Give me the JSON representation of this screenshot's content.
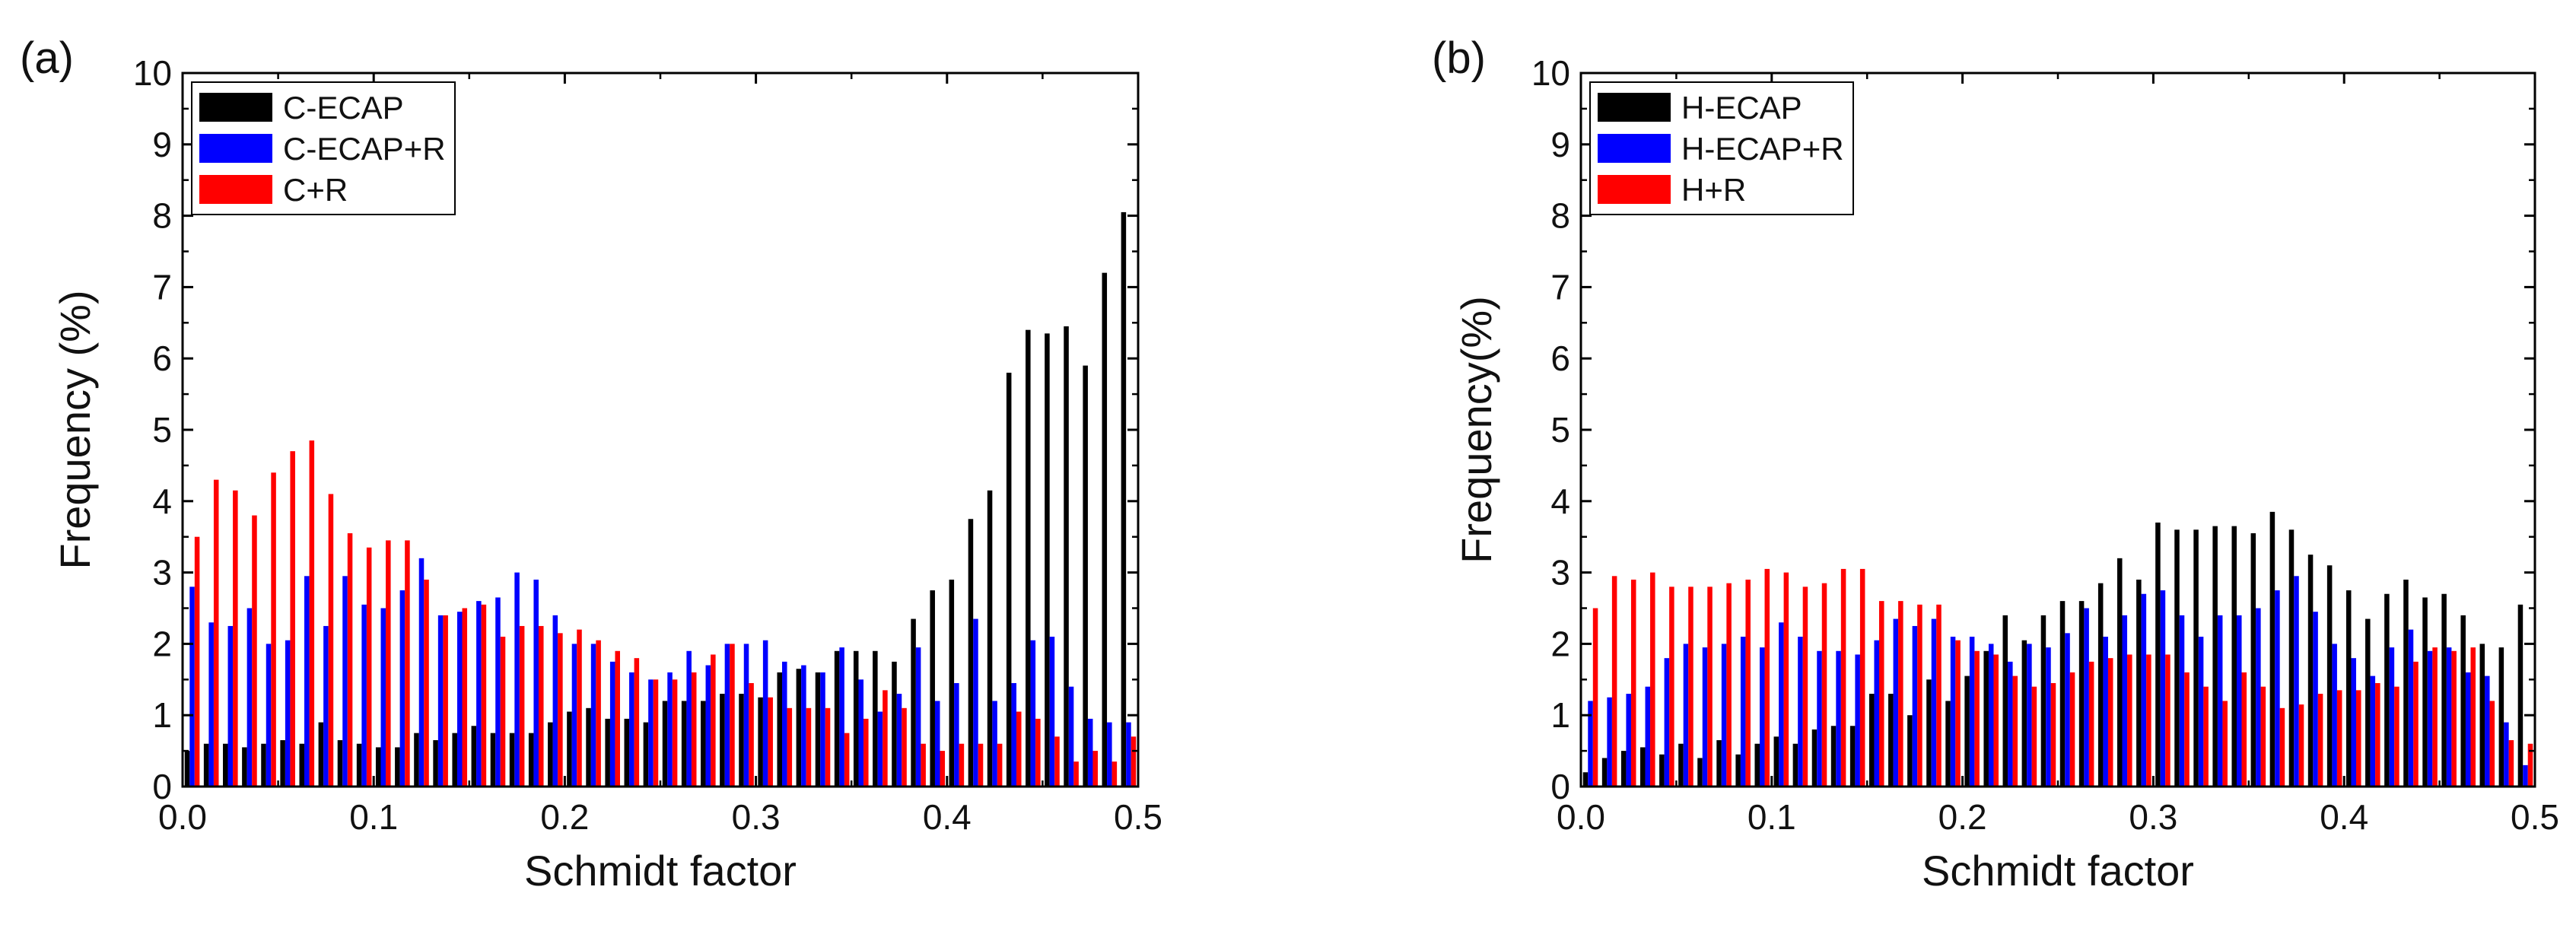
{
  "chart_data": [
    {
      "type": "bar",
      "panel_label": "(a)",
      "xlabel": "Schmidt factor",
      "ylabel": "Frequency (%)",
      "xlim": [
        0,
        0.5
      ],
      "ylim": [
        0,
        10
      ],
      "x_ticks": [
        "0.0",
        "0.1",
        "0.2",
        "0.3",
        "0.4",
        "0.5"
      ],
      "y_ticks": [
        "0",
        "1",
        "2",
        "3",
        "4",
        "5",
        "6",
        "7",
        "8",
        "9",
        "10"
      ],
      "bin_width": 0.01,
      "x": [
        0.005,
        0.015,
        0.025,
        0.035,
        0.045,
        0.055,
        0.065,
        0.075,
        0.085,
        0.095,
        0.105,
        0.115,
        0.125,
        0.135,
        0.145,
        0.155,
        0.165,
        0.175,
        0.185,
        0.195,
        0.205,
        0.215,
        0.225,
        0.235,
        0.245,
        0.255,
        0.265,
        0.275,
        0.285,
        0.295,
        0.305,
        0.315,
        0.325,
        0.335,
        0.345,
        0.355,
        0.365,
        0.375,
        0.385,
        0.395,
        0.405,
        0.415,
        0.425,
        0.435,
        0.445,
        0.455,
        0.465,
        0.475,
        0.485,
        0.495
      ],
      "legend": {
        "position": "top-left"
      },
      "series": [
        {
          "name": "C-ECAP",
          "color": "#000000",
          "values": [
            0.5,
            0.6,
            0.6,
            0.55,
            0.6,
            0.65,
            0.6,
            0.9,
            0.65,
            0.6,
            0.55,
            0.55,
            0.75,
            0.65,
            0.75,
            0.85,
            0.75,
            0.75,
            0.75,
            0.9,
            1.05,
            1.1,
            0.95,
            0.95,
            0.9,
            1.2,
            1.2,
            1.2,
            1.3,
            1.3,
            1.25,
            1.6,
            1.65,
            1.6,
            1.9,
            1.9,
            1.9,
            1.75,
            2.35,
            2.75,
            2.9,
            3.75,
            4.15,
            5.8,
            6.4,
            6.35,
            6.45,
            5.9,
            7.2,
            8.05
          ]
        },
        {
          "name": "C-ECAP+R",
          "color": "#0000ff",
          "values": [
            2.8,
            2.3,
            2.25,
            2.5,
            2.0,
            2.05,
            2.95,
            2.25,
            2.95,
            2.55,
            2.5,
            2.75,
            3.2,
            2.4,
            2.45,
            2.6,
            2.65,
            3.0,
            2.9,
            2.4,
            2.0,
            2.0,
            1.75,
            1.6,
            1.5,
            1.6,
            1.9,
            1.7,
            2.0,
            2.0,
            2.05,
            1.75,
            1.7,
            1.6,
            1.95,
            1.5,
            1.05,
            1.3,
            1.95,
            1.2,
            1.45,
            2.35,
            1.2,
            1.45,
            2.05,
            2.1,
            1.4,
            0.95,
            0.9,
            0.9
          ]
        },
        {
          "name": "C+R",
          "color": "#ff0000",
          "values": [
            3.5,
            4.3,
            4.15,
            3.8,
            4.4,
            4.7,
            4.85,
            4.1,
            3.55,
            3.35,
            3.45,
            3.45,
            2.9,
            2.4,
            2.5,
            2.55,
            2.1,
            2.25,
            2.25,
            2.15,
            2.2,
            2.05,
            1.9,
            1.8,
            1.5,
            1.5,
            1.6,
            1.85,
            2.0,
            1.45,
            1.25,
            1.1,
            1.1,
            1.1,
            0.75,
            0.95,
            1.35,
            1.1,
            0.6,
            0.5,
            0.6,
            0.6,
            0.6,
            1.05,
            0.95,
            0.7,
            0.35,
            0.5,
            0.35,
            0.7
          ]
        }
      ]
    },
    {
      "type": "bar",
      "panel_label": "(b)",
      "xlabel": "Schmidt factor",
      "ylabel": "Frequency(%)",
      "xlim": [
        0,
        0.5
      ],
      "ylim": [
        0,
        10
      ],
      "x_ticks": [
        "0.0",
        "0.1",
        "0.2",
        "0.3",
        "0.4",
        "0.5"
      ],
      "y_ticks": [
        "0",
        "1",
        "2",
        "3",
        "4",
        "5",
        "6",
        "7",
        "8",
        "9",
        "10"
      ],
      "bin_width": 0.01,
      "x": [
        0.005,
        0.015,
        0.025,
        0.035,
        0.045,
        0.055,
        0.065,
        0.075,
        0.085,
        0.095,
        0.105,
        0.115,
        0.125,
        0.135,
        0.145,
        0.155,
        0.165,
        0.175,
        0.185,
        0.195,
        0.205,
        0.215,
        0.225,
        0.235,
        0.245,
        0.255,
        0.265,
        0.275,
        0.285,
        0.295,
        0.305,
        0.315,
        0.325,
        0.335,
        0.345,
        0.355,
        0.365,
        0.375,
        0.385,
        0.395,
        0.405,
        0.415,
        0.425,
        0.435,
        0.445,
        0.455,
        0.465,
        0.475,
        0.485,
        0.495
      ],
      "legend": {
        "position": "top-left"
      },
      "series": [
        {
          "name": "H-ECAP",
          "color": "#000000",
          "values": [
            0.2,
            0.4,
            0.5,
            0.55,
            0.45,
            0.6,
            0.4,
            0.65,
            0.45,
            0.6,
            0.7,
            0.6,
            0.8,
            0.85,
            0.85,
            1.3,
            1.3,
            1.0,
            1.5,
            1.2,
            1.55,
            1.9,
            2.4,
            2.05,
            2.4,
            2.6,
            2.6,
            2.85,
            3.2,
            2.9,
            3.7,
            3.6,
            3.6,
            3.65,
            3.65,
            3.55,
            3.85,
            3.6,
            3.25,
            3.1,
            2.75,
            2.35,
            2.7,
            2.9,
            2.65,
            2.7,
            2.4,
            2.0,
            1.95,
            2.55
          ]
        },
        {
          "name": "H-ECAP+R",
          "color": "#0000ff",
          "values": [
            1.2,
            1.25,
            1.3,
            1.4,
            1.8,
            2.0,
            1.95,
            2.0,
            2.1,
            1.95,
            2.3,
            2.1,
            1.9,
            1.9,
            1.85,
            2.05,
            2.35,
            2.25,
            2.35,
            2.1,
            2.1,
            2.0,
            1.75,
            2.0,
            1.95,
            2.15,
            2.5,
            2.1,
            2.4,
            2.7,
            2.75,
            2.4,
            2.1,
            2.4,
            2.4,
            2.5,
            2.75,
            2.95,
            2.45,
            2.0,
            1.8,
            1.55,
            1.95,
            2.2,
            1.9,
            1.95,
            1.6,
            1.55,
            0.9,
            0.3
          ]
        },
        {
          "name": "H+R",
          "color": "#ff0000",
          "values": [
            2.5,
            2.95,
            2.9,
            3.0,
            2.8,
            2.8,
            2.8,
            2.85,
            2.9,
            3.05,
            3.0,
            2.8,
            2.85,
            3.05,
            3.05,
            2.6,
            2.6,
            2.55,
            2.55,
            2.05,
            1.9,
            1.85,
            1.55,
            1.4,
            1.45,
            1.6,
            1.75,
            1.8,
            1.85,
            1.85,
            1.85,
            1.6,
            1.4,
            1.2,
            1.6,
            1.4,
            1.1,
            1.15,
            1.3,
            1.35,
            1.35,
            1.45,
            1.4,
            1.75,
            1.95,
            1.9,
            1.95,
            1.2,
            0.65,
            0.6
          ]
        }
      ]
    }
  ]
}
